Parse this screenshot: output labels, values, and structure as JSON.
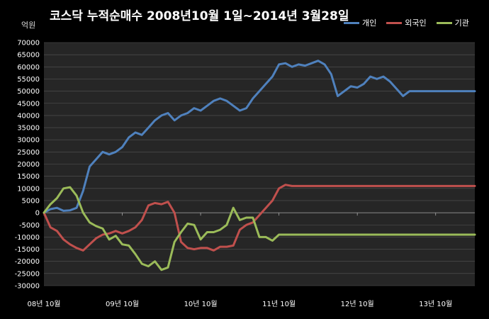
{
  "chart_data": {
    "type": "line",
    "title": "코스닥 누적순매수 2008년10월 1일~2014년 3월28일",
    "unit_label": "억원",
    "ylim": [
      -30000,
      70000
    ],
    "yticks": [
      70000,
      65000,
      60000,
      55000,
      50000,
      45000,
      40000,
      35000,
      30000,
      25000,
      20000,
      15000,
      10000,
      5000,
      0,
      -5000,
      -10000,
      -15000,
      -20000,
      -25000,
      -30000
    ],
    "xlim": [
      0,
      66
    ],
    "x_tick_labels": [
      {
        "x": 0,
        "label": "08년 10월"
      },
      {
        "x": 12,
        "label": "09년 10월"
      },
      {
        "x": 24,
        "label": "10년 10월"
      },
      {
        "x": 36,
        "label": "11년 10월"
      },
      {
        "x": 48,
        "label": "12년 10월"
      },
      {
        "x": 60,
        "label": "13년 10월"
      }
    ],
    "grid": true,
    "legend_position": "top-right",
    "x": [
      0,
      1,
      2,
      3,
      4,
      5,
      6,
      7,
      8,
      9,
      10,
      11,
      12,
      13,
      14,
      15,
      16,
      17,
      18,
      19,
      20,
      21,
      22,
      23,
      24,
      25,
      26,
      27,
      28,
      29,
      30,
      31,
      32,
      33,
      34,
      35,
      36,
      37,
      38,
      39,
      40,
      41,
      42,
      43,
      44,
      45,
      46,
      47,
      48,
      49,
      50,
      51,
      52,
      53,
      54,
      55,
      56,
      57,
      58,
      59,
      60,
      61,
      62,
      63,
      64,
      65,
      66
    ],
    "series": [
      {
        "name": "개인",
        "color": "#4f81bd",
        "values": [
          0,
          1500,
          2000,
          800,
          1000,
          2000,
          9000,
          19000,
          22000,
          25000,
          24000,
          25000,
          27000,
          31000,
          33000,
          32000,
          35000,
          38000,
          40000,
          41000,
          38000,
          40000,
          41000,
          43000,
          42000,
          44000,
          46000,
          47000,
          46000,
          44000,
          42000,
          43000,
          47000,
          50000,
          53000,
          56000,
          61000,
          61500,
          60000,
          61000,
          60500,
          61500,
          62500,
          61000,
          57000,
          48000,
          50000,
          52000,
          51500,
          53000,
          56000,
          55000,
          56000,
          54000,
          51000,
          48000,
          50000,
          50000,
          50000,
          50000,
          50000,
          50000,
          50000,
          50000,
          50000,
          50000,
          50000
        ]
      },
      {
        "name": "외국인",
        "color": "#c0504d",
        "values": [
          0,
          -6000,
          -7500,
          -11000,
          -13000,
          -14500,
          -15500,
          -13000,
          -10500,
          -9000,
          -8500,
          -7500,
          -8500,
          -7500,
          -6000,
          -3000,
          3000,
          4000,
          3500,
          4500,
          0,
          -12000,
          -14500,
          -15000,
          -14500,
          -14500,
          -15500,
          -14000,
          -14000,
          -13500,
          -7000,
          -5000,
          -4000,
          -1000,
          2000,
          5000,
          10000,
          11500,
          11000,
          11000,
          11000,
          11000,
          11000,
          11000,
          11000,
          11000,
          11000,
          11000,
          11000,
          11000,
          11000,
          11000,
          11000,
          11000,
          11000,
          11000,
          11000,
          11000,
          11000,
          11000,
          11000,
          11000,
          11000,
          11000,
          11000,
          11000,
          11000
        ]
      },
      {
        "name": "기관",
        "color": "#9bbb59",
        "values": [
          0,
          3500,
          6000,
          10000,
          10500,
          7000,
          0,
          -4000,
          -5500,
          -6500,
          -11000,
          -9500,
          -13000,
          -13500,
          -17000,
          -21000,
          -22000,
          -20000,
          -23500,
          -22500,
          -12000,
          -8000,
          -4500,
          -5000,
          -11000,
          -8000,
          -8000,
          -7000,
          -5000,
          2000,
          -3000,
          -2000,
          -2000,
          -10000,
          -10000,
          -11500,
          -9000,
          -9000,
          -9000,
          -9000,
          -9000,
          -9000,
          -9000,
          -9000,
          -9000,
          -9000,
          -9000,
          -9000,
          -9000,
          -9000,
          -9000,
          -9000,
          -9000,
          -9000,
          -9000,
          -9000,
          -9000,
          -9000,
          -9000,
          -9000,
          -9000,
          -9000,
          -9000,
          -9000,
          -9000,
          -9000,
          -9000
        ]
      }
    ]
  }
}
